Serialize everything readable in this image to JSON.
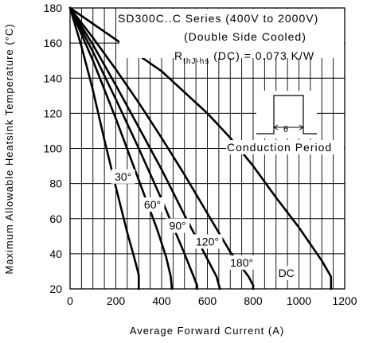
{
  "chart_data": {
    "type": "line",
    "title_lines": [
      "SD300C..C Series (400V to 2000V)",
      "(Double Side Cooled)"
    ],
    "rth_label": {
      "main": "R",
      "sub": "thJ-hs",
      "rest": " (DC) = 0.073 K/W"
    },
    "xlabel": "Average Forward Current (A)",
    "ylabel": "Maximum Allowable Heatsink Temperature (°C)",
    "xlim": [
      0,
      1200
    ],
    "ylim": [
      20,
      180
    ],
    "xticks": [
      0,
      200,
      400,
      600,
      800,
      1000,
      1200
    ],
    "yticks": [
      20,
      40,
      60,
      80,
      100,
      120,
      140,
      160,
      180
    ],
    "grid": true,
    "conduction_label": "Conduction Period",
    "series": [
      {
        "name": "30°",
        "x": [
          0,
          50,
          100,
          150,
          200,
          250,
          280,
          300,
          300
        ],
        "y": [
          180,
          158,
          133,
          105,
          78,
          52,
          38,
          28,
          20
        ]
      },
      {
        "name": "60°",
        "x": [
          0,
          100,
          200,
          300,
          380,
          420,
          440,
          445
        ],
        "y": [
          180,
          150,
          117,
          82,
          54,
          38,
          27,
          20
        ]
      },
      {
        "name": "90°",
        "x": [
          0,
          100,
          200,
          300,
          400,
          500,
          540,
          555,
          555
        ],
        "y": [
          180,
          155,
          128,
          100,
          71,
          40,
          27,
          22,
          20
        ]
      },
      {
        "name": "120°",
        "x": [
          0,
          100,
          200,
          300,
          400,
          500,
          600,
          640,
          655
        ],
        "y": [
          180,
          159,
          136,
          112,
          88,
          62,
          37,
          27,
          20
        ]
      },
      {
        "name": "180°",
        "x": [
          0,
          100,
          200,
          300,
          400,
          500,
          600,
          700,
          780,
          800,
          800
        ],
        "y": [
          180,
          163,
          145,
          126,
          106,
          85,
          63,
          41,
          27,
          22,
          20
        ]
      },
      {
        "name": "DC",
        "x": [
          0,
          200,
          400,
          600,
          700,
          800,
          900,
          1000,
          1100,
          1140,
          1140
        ],
        "y": [
          180,
          162,
          144,
          120,
          106,
          90,
          72,
          55,
          36,
          27,
          20
        ]
      }
    ],
    "curve_labels": [
      {
        "text": "30°",
        "x": 232,
        "y": 84
      },
      {
        "text": "60°",
        "x": 360,
        "y": 68
      },
      {
        "text": "90°",
        "x": 470,
        "y": 56
      },
      {
        "text": "120°",
        "x": 600,
        "y": 47
      },
      {
        "text": "180°",
        "x": 750,
        "y": 35
      },
      {
        "text": "DC",
        "x": 945,
        "y": 29
      }
    ]
  }
}
